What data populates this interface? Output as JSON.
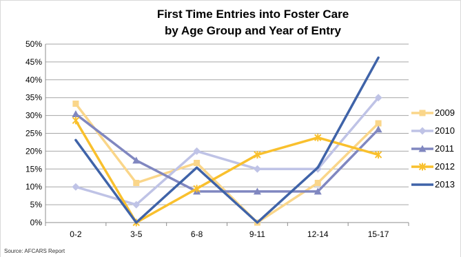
{
  "chart_data": {
    "type": "line",
    "title_line1": "First Time Entries into Foster Care",
    "title_line2": "by Age Group and Year of Entry",
    "categories": [
      "0-2",
      "3-5",
      "6-8",
      "9-11",
      "12-14",
      "15-17"
    ],
    "y_ticks": [
      "0%",
      "5%",
      "10%",
      "15%",
      "20%",
      "25%",
      "30%",
      "35%",
      "40%",
      "45%",
      "50%"
    ],
    "ylim": [
      0,
      50
    ],
    "y_unit": "%",
    "grid": true,
    "legend_position": "right",
    "series": [
      {
        "name": "2009",
        "color": "#FAD68A",
        "marker": "square",
        "values": [
          33.3,
          11.1,
          16.7,
          0,
          11.1,
          27.8
        ]
      },
      {
        "name": "2010",
        "color": "#BFC3E6",
        "marker": "diamond",
        "values": [
          10,
          5,
          20,
          15,
          15,
          35
        ]
      },
      {
        "name": "2011",
        "color": "#8087C0",
        "marker": "triangle",
        "values": [
          30.4,
          17.4,
          8.7,
          8.7,
          8.7,
          26.1
        ]
      },
      {
        "name": "2012",
        "color": "#F9C02D",
        "marker": "star",
        "values": [
          28.6,
          0,
          9.5,
          19,
          23.8,
          19
        ]
      },
      {
        "name": "2013",
        "color": "#3F63A8",
        "marker": "none",
        "values": [
          23.1,
          0,
          15.4,
          0,
          15.4,
          46.2
        ]
      }
    ]
  },
  "source_note": "Source: AFCARS Report"
}
